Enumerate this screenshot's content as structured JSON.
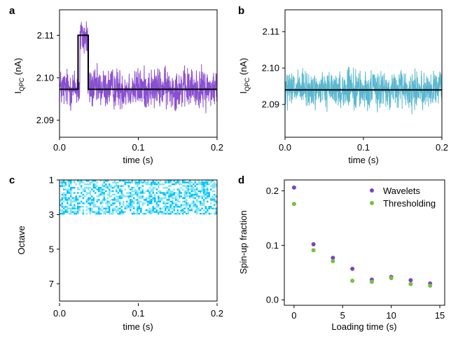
{
  "chart_data": [
    {
      "panel": "a",
      "type": "line",
      "xlabel": "time (s)",
      "ylabel_main": "I",
      "ylabel_sub": "QPC",
      "ylabel_unit": " (nA)",
      "xlim": [
        0,
        0.2
      ],
      "ylim": [
        2.086,
        2.116
      ],
      "xticks": [
        0,
        0.1,
        0.2
      ],
      "xtick_labels": [
        "0.0",
        "0.1",
        "0.2"
      ],
      "yticks": [
        2.09,
        2.1,
        2.11
      ],
      "ytick_labels": [
        "2.09",
        "2.10",
        "2.11"
      ],
      "noise": {
        "mean": 2.0975,
        "amplitude": 0.0042,
        "step": 0.0005,
        "high_level": 2.1095,
        "high_start": 0.026,
        "high_end": 0.036
      },
      "fit": {
        "x": [
          0,
          0.0235,
          0.0235,
          0.0365,
          0.0365,
          0.2
        ],
        "y": [
          2.0973,
          2.0973,
          2.11,
          2.11,
          2.0973,
          2.0973
        ]
      },
      "colors": {
        "signal": "#8a4fd0",
        "fit": "#000000"
      }
    },
    {
      "panel": "b",
      "type": "line",
      "xlabel": "time (s)",
      "ylabel_main": "I",
      "ylabel_sub": "QPC",
      "ylabel_unit": " (nA)",
      "xlim": [
        0,
        0.2
      ],
      "ylim": [
        2.081,
        2.116
      ],
      "xticks": [
        0,
        0.1,
        0.2
      ],
      "xtick_labels": [
        "0.0",
        "0.1",
        "0.2"
      ],
      "yticks": [
        2.09,
        2.1,
        2.11
      ],
      "ytick_labels": [
        "2.09",
        "2.10",
        "2.11"
      ],
      "noise": {
        "mean": 2.094,
        "amplitude": 0.0045,
        "step": 0.0005
      },
      "fit": {
        "x": [
          0,
          0.2
        ],
        "y": [
          2.094,
          2.094
        ]
      },
      "colors": {
        "signal": "#5ab8d0",
        "fit": "#000000"
      }
    },
    {
      "panel": "c",
      "type": "heatmap",
      "xlabel": "time (s)",
      "ylabel": "Octave",
      "xlim": [
        0,
        0.2
      ],
      "ylim": [
        1,
        8
      ],
      "xticks": [
        0,
        0.1,
        0.2
      ],
      "xtick_labels": [
        "0.0",
        "0.1",
        "0.2"
      ],
      "yticks": [
        1,
        3,
        5,
        7
      ],
      "ytick_labels": [
        "1",
        "3",
        "5",
        "7"
      ],
      "event_time": 0.031,
      "colormap": [
        "#ffffff",
        "#7fe4f8",
        "#00c4ff",
        "#0096ff",
        "#0a4fff",
        "#3a2fe0",
        "#7a3fdd"
      ],
      "hot_colormap": [
        "#00c8f0",
        "#22dd66",
        "#ccee00",
        "#ffaa00",
        "#ff2200"
      ]
    },
    {
      "panel": "d",
      "type": "scatter",
      "xlabel": "Loading time (s)",
      "ylabel": "Spin-up fraction",
      "xlim": [
        -1,
        15.5
      ],
      "ylim": [
        -0.01,
        0.22
      ],
      "xticks": [
        0,
        5,
        10,
        15
      ],
      "xtick_labels": [
        "0",
        "5",
        "10",
        "15"
      ],
      "yticks": [
        0,
        0.1,
        0.2
      ],
      "ytick_labels": [
        "0.0",
        "0.1",
        "0.2"
      ],
      "series": [
        {
          "name": "Wavelets",
          "color": "#7b45c4",
          "x": [
            0,
            2,
            4,
            6,
            8,
            10,
            12,
            14
          ],
          "y": [
            0.206,
            0.102,
            0.077,
            0.057,
            0.037,
            0.042,
            0.036,
            0.03
          ]
        },
        {
          "name": "Thresholding",
          "color": "#77c13c",
          "x": [
            0,
            2,
            4,
            6,
            8,
            10,
            12,
            14
          ],
          "y": [
            0.176,
            0.091,
            0.071,
            0.035,
            0.033,
            0.04,
            0.029,
            0.026
          ]
        }
      ],
      "legend_position": "top-right"
    }
  ]
}
